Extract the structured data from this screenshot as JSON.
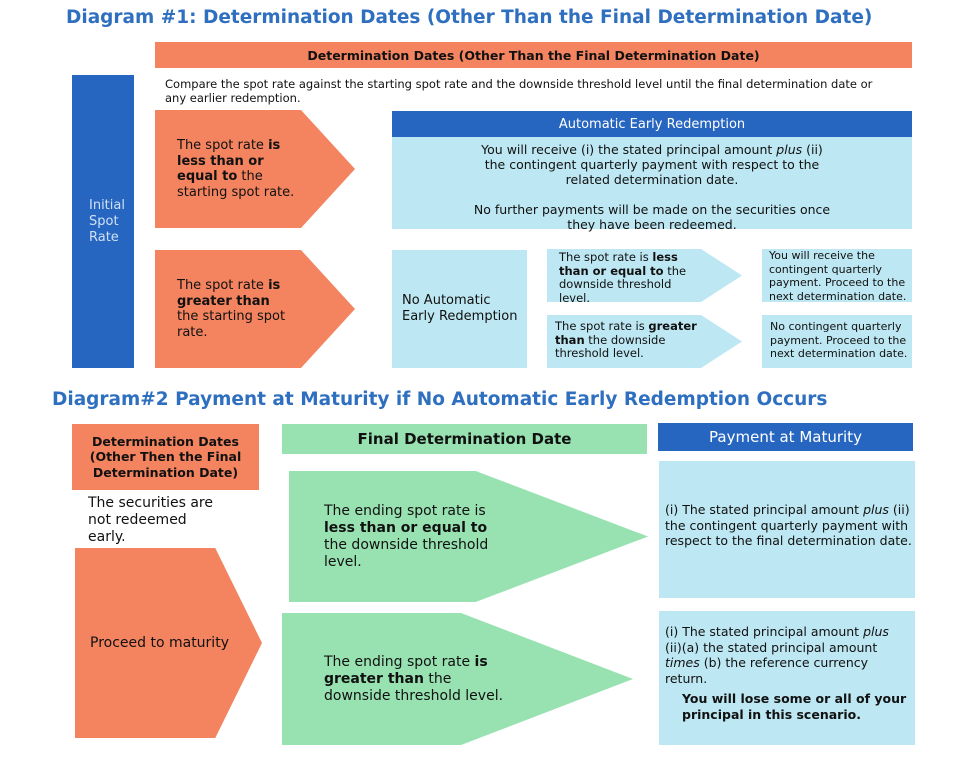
{
  "colors": {
    "title": "#2f6fc0",
    "orange": "#f4845f",
    "dark_blue": "#2766c0",
    "light_blue": "#bde7f2",
    "green": "#98e2b1"
  },
  "diagram1": {
    "title": "Diagram #1: Determination Dates (Other Than the Final Determination Date)",
    "header": "Determination Dates (Other Than the Final Determination Date)",
    "intro": "Compare the spot rate against the starting spot rate and the downside threshold level until the final determination date or any earlier redemption.",
    "initial_spot_rate": "Initial Spot Rate",
    "arrow_less": [
      {
        "t": "The spot rate "
      },
      {
        "t": "is less than or equal to",
        "b": true
      },
      {
        "t": " the starting spot rate."
      }
    ],
    "arrow_greater": [
      {
        "t": "The spot rate "
      },
      {
        "t": "is greater than",
        "b": true
      },
      {
        "t": " the starting spot rate."
      }
    ],
    "aer_header": "Automatic Early Redemption",
    "aer_body_1": [
      {
        "t": "You will receive (i) the stated principal amount "
      },
      {
        "t": "plus",
        "i": true
      },
      {
        "t": " (ii) the contingent quarterly payment with respect to the related determination date."
      }
    ],
    "aer_body_2": "No further payments will be made on the securities once they have been redeemed.",
    "no_aer": "No Automatic Early Redemption",
    "small_arrow_less": [
      {
        "t": "The spot rate is "
      },
      {
        "t": "less than or equal to",
        "b": true
      },
      {
        "t": " the downside threshold level."
      }
    ],
    "small_arrow_greater": [
      {
        "t": "The spot rate is "
      },
      {
        "t": "greater than",
        "b": true
      },
      {
        "t": " the downside threshold level."
      }
    ],
    "result_less": "You will  receive the contingent quarterly payment. Proceed to the next determination date.",
    "result_greater": "No contingent quarterly payment. Proceed to the next determination date."
  },
  "diagram2": {
    "title": "Diagram#2 Payment at Maturity if No Automatic Early Redemption Occurs",
    "det_dates": "Determination Dates (Other Then the Final Determination Date)",
    "final_det": "Final Determination Date",
    "payment_header": "Payment at Maturity",
    "not_redeemed": "The securities are not redeemed early.",
    "proceed": "Proceed to maturity",
    "arrow_less": [
      {
        "t": "The ending spot rate  is "
      },
      {
        "t": "less than or equal to",
        "b": true
      },
      {
        "t": " the downside threshold level."
      }
    ],
    "arrow_greater": [
      {
        "t": "The ending spot rate "
      },
      {
        "t": "is greater than",
        "b": true
      },
      {
        "t": " the downside threshold level."
      }
    ],
    "payment_less": [
      {
        "t": "(i) The stated principal amount "
      },
      {
        "t": "plus",
        "i": true
      },
      {
        "t": " (ii) the contingent quarterly payment with respect to the final determination date."
      }
    ],
    "payment_greater": [
      {
        "t": "(i) The stated principal amount "
      },
      {
        "t": "plus",
        "i": true
      },
      {
        "t": " (ii)(a) the stated principal amount "
      },
      {
        "t": "times",
        "i": true
      },
      {
        "t": " (b) the reference currency return."
      }
    ],
    "loss_warning": "You will lose some or all of your principal in this scenario."
  }
}
